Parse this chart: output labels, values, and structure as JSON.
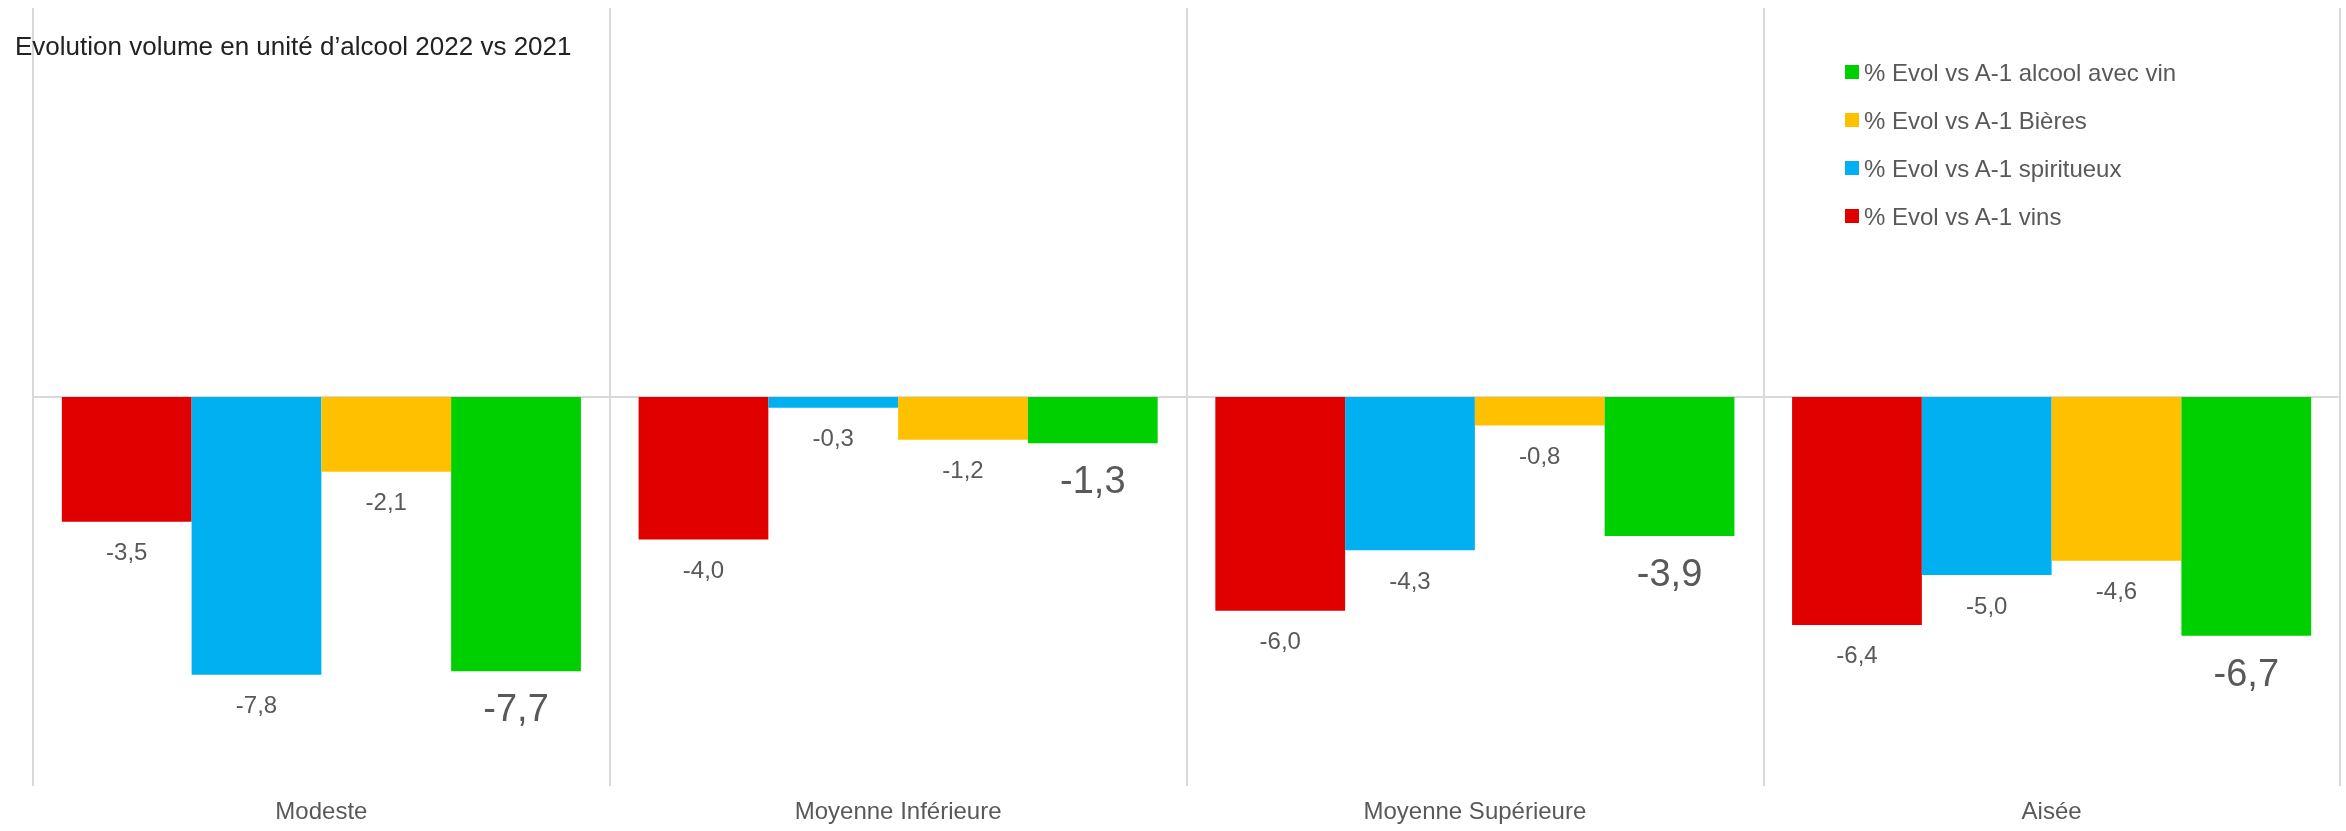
{
  "chart_data": {
    "type": "bar",
    "title": "Evolution volume en unité d’alcool 2022 vs 2021",
    "categories": [
      "Modeste",
      "Moyenne Inférieure",
      "Moyenne Supérieure",
      "Aisée"
    ],
    "series": [
      {
        "name": "% Evol vs A-1 vins",
        "color": "#e00000",
        "values": [
          -3.5,
          -4.0,
          -6.0,
          -6.4
        ],
        "value_labels": [
          "-3,5",
          "-4,0",
          "-6,0",
          "-6,4"
        ]
      },
      {
        "name": "% Evol vs A-1 spiritueux",
        "color": "#00b0f0",
        "values": [
          -7.8,
          -0.3,
          -4.3,
          -5.0
        ],
        "value_labels": [
          "-7,8",
          "-0,3",
          "-4,3",
          "-5,0"
        ]
      },
      {
        "name": "% Evol vs A-1 Bières",
        "color": "#ffc000",
        "values": [
          -2.1,
          -1.2,
          -0.8,
          -4.6
        ],
        "value_labels": [
          "-2,1",
          "-1,2",
          "-0,8",
          "-4,6"
        ]
      },
      {
        "name": "% Evol vs A-1 alcool avec vin",
        "color": "#00d000",
        "values": [
          -7.7,
          -1.3,
          -3.9,
          -6.7
        ],
        "value_labels": [
          "-7,7",
          "-1,3",
          "-3,9",
          "-6,7"
        ]
      }
    ],
    "legend": "top right",
    "grid": "x",
    "tick_labels": "x"
  }
}
